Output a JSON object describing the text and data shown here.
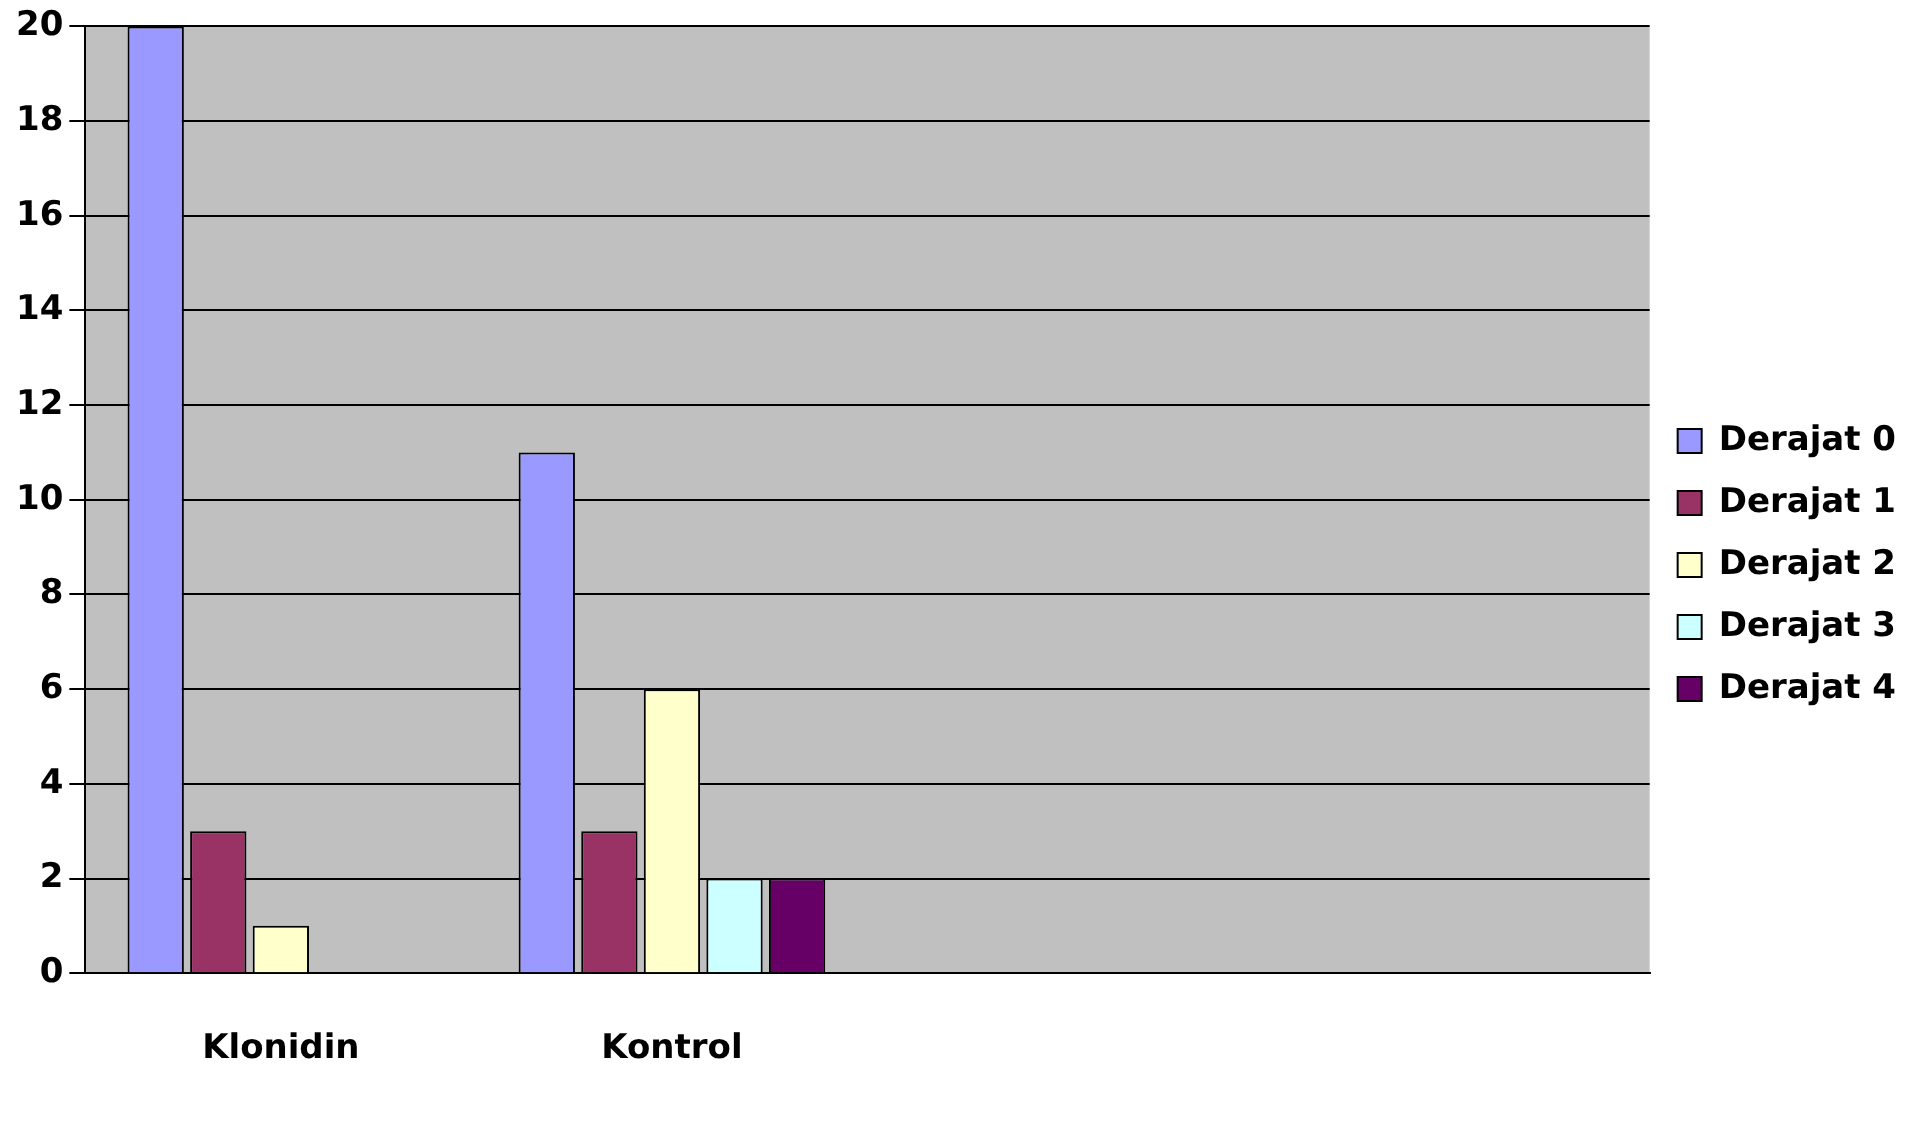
{
  "chart_data": {
    "type": "bar",
    "categories": [
      "Klonidin",
      "Kontrol",
      null,
      null
    ],
    "series": [
      {
        "name": "Derajat 0",
        "color": "#9999ff",
        "values": [
          20,
          11,
          null,
          null
        ]
      },
      {
        "name": "Derajat 1",
        "color": "#993366",
        "values": [
          3,
          3,
          null,
          null
        ]
      },
      {
        "name": "Derajat 2",
        "color": "#ffffcc",
        "values": [
          1,
          6,
          null,
          null
        ]
      },
      {
        "name": "Derajat 3",
        "color": "#ccffff",
        "values": [
          0,
          2,
          null,
          null
        ]
      },
      {
        "name": "Derajat 4",
        "color": "#660066",
        "values": [
          0,
          2,
          null,
          null
        ]
      }
    ],
    "ylim": [
      0,
      20
    ],
    "yticks": [
      0,
      2,
      4,
      6,
      8,
      10,
      12,
      14,
      16,
      18,
      20
    ],
    "grid": "y",
    "legend": "right"
  }
}
